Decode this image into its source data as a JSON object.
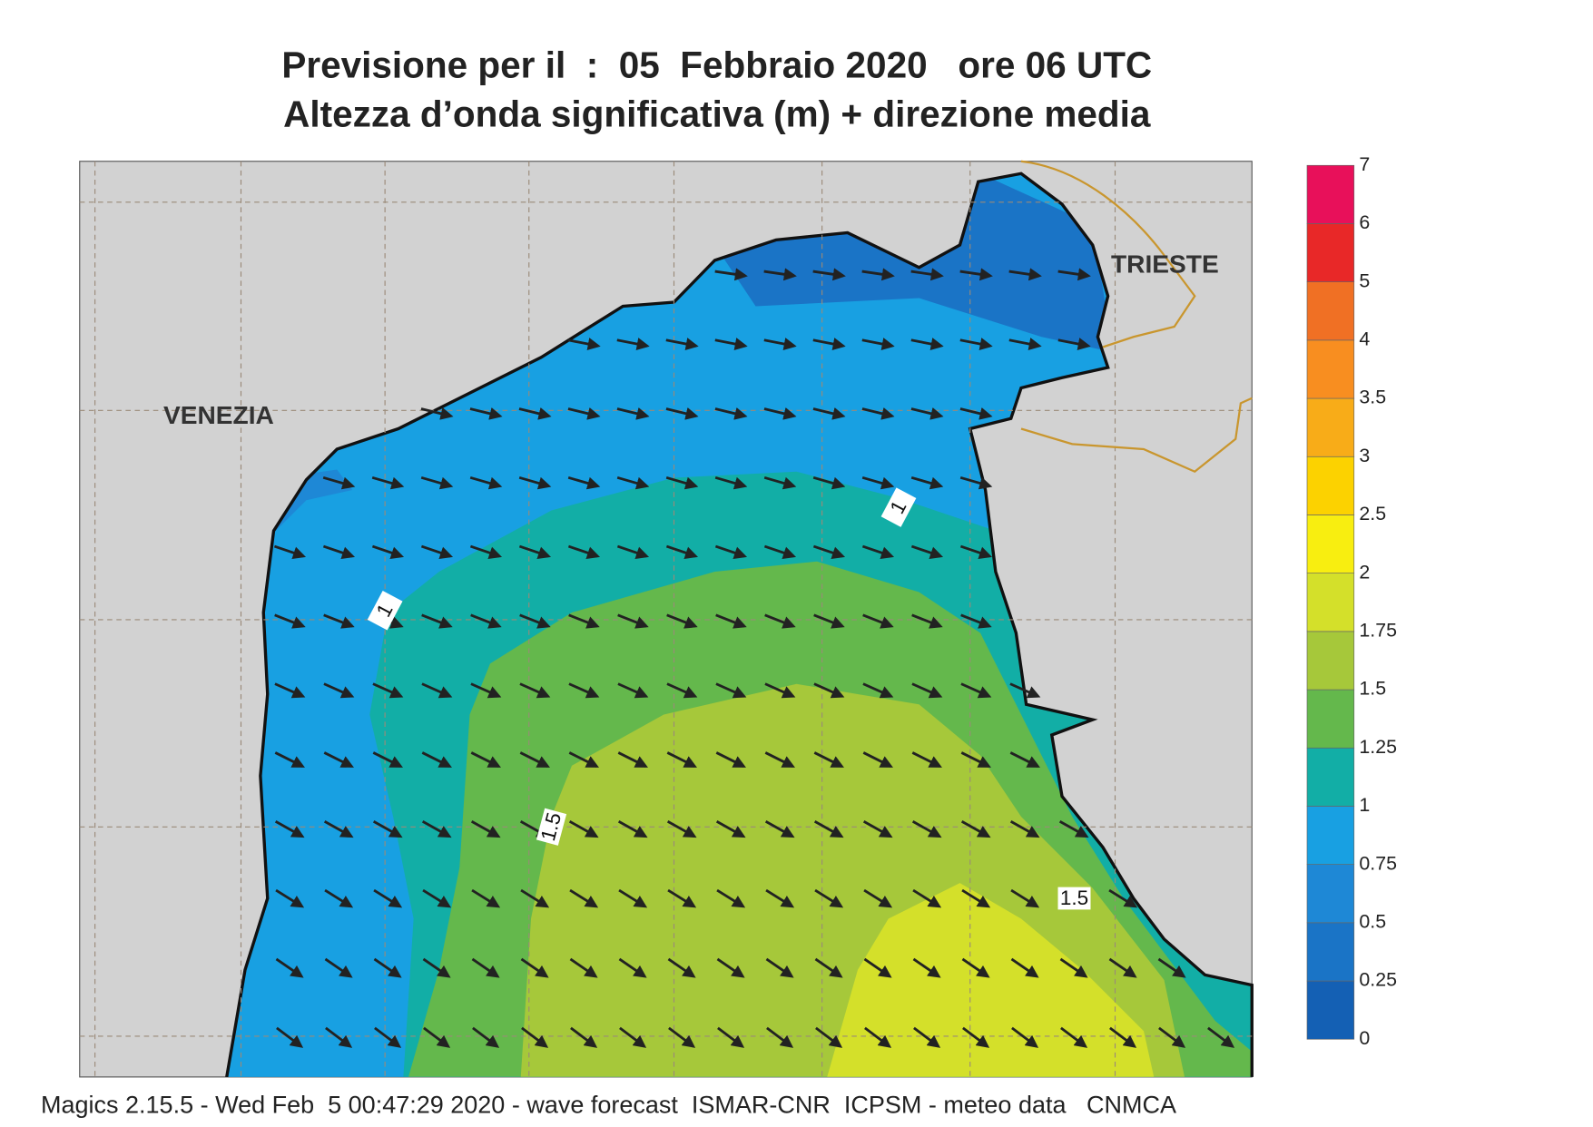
{
  "title": [
    "Previsione per il  :  05  Febbraio 2020   ore 06 UTC",
    "Altezza d’onda significativa (m) + direzione media"
  ],
  "places": [
    "VENEZIA",
    "TRIESTE"
  ],
  "contour_labels": [
    1,
    1,
    1.5,
    1.5
  ],
  "colorbar": {
    "levels": [
      0,
      0.25,
      0.5,
      0.75,
      1,
      1.25,
      1.5,
      1.75,
      2,
      2.5,
      3,
      3.5,
      4,
      5,
      6,
      7
    ],
    "colors": [
      "#1460b4",
      "#1a74c6",
      "#1e88d6",
      "#18a0e2",
      "#12aea6",
      "#64b84c",
      "#a6c83a",
      "#d4e02a",
      "#f8ee10",
      "#fcd200",
      "#f8ac18",
      "#f88e20",
      "#f07024",
      "#e82828",
      "#e8105a"
    ]
  },
  "footer": "Magics 2.15.5 - Wed Feb  5 00:47:29 2020 - wave forecast  ISMAR-CNR  ICPSM - meteo data   CNMCA"
}
